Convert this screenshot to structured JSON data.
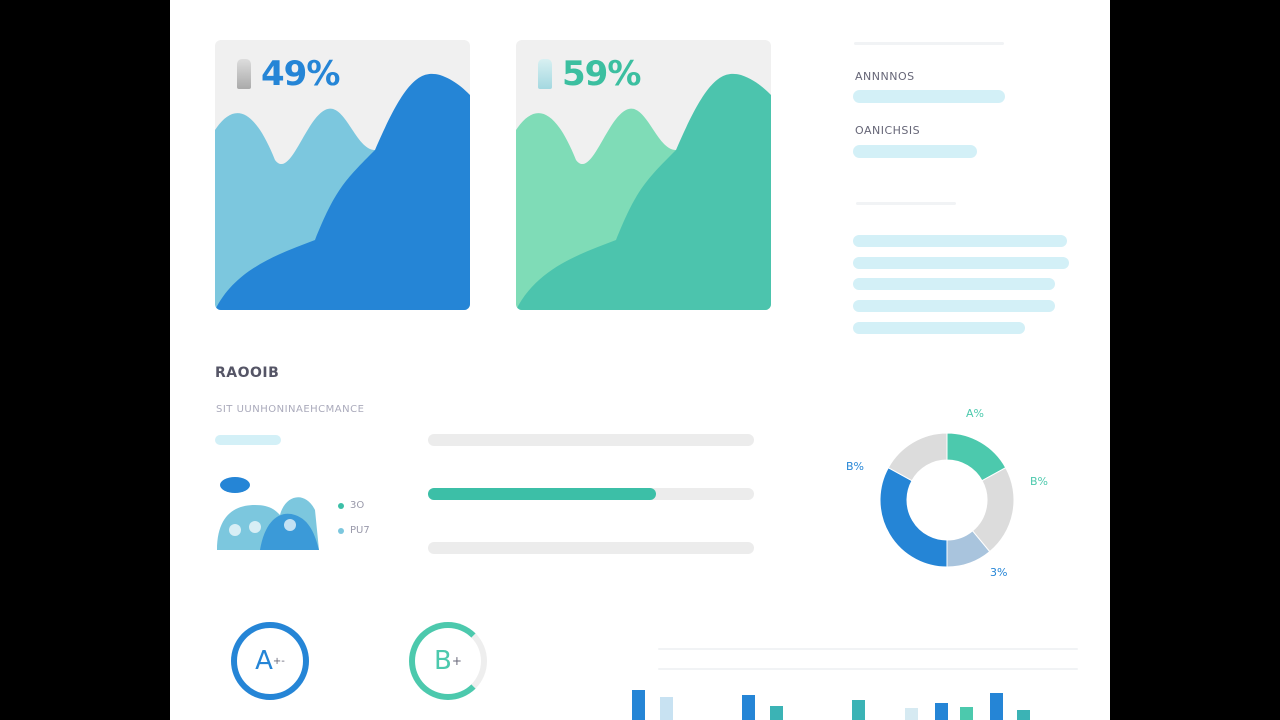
{
  "cards": [
    {
      "value": "49%",
      "icon": "battery-icon",
      "colors": {
        "back": "#7cc7de",
        "front": "#2585d6",
        "text": "#2585d6"
      }
    },
    {
      "value": "59%",
      "icon": "battery-icon",
      "colors": {
        "back": "#7fdcb7",
        "front": "#4cc4ad",
        "text": "#3cbfa0"
      }
    }
  ],
  "side": {
    "label1": "ANNNNOS",
    "label2": "OANICHSIS"
  },
  "section": {
    "title": "RAOOIB",
    "subtitle": "SIT UUNHONINAEHCMANCE",
    "legend": [
      {
        "label": "3O",
        "color": "#3cbfa7"
      },
      {
        "label": "PU7",
        "color": "#7cc7de"
      }
    ]
  },
  "progress": [
    {
      "value": 0
    },
    {
      "value": 70
    },
    {
      "value": 0
    }
  ],
  "chart_data": [
    {
      "type": "pie",
      "variant": "donut",
      "labels": [
        "A%",
        "B%",
        "3%",
        "B%"
      ],
      "segments": [
        {
          "value": 17,
          "color": "#4cc9ad"
        },
        {
          "value": 22,
          "color": "#dcdcdc"
        },
        {
          "value": 11,
          "color": "#a9c4dd"
        },
        {
          "value": 33,
          "color": "#2585d6"
        },
        {
          "value": 17,
          "color": "#dcdcdc"
        }
      ]
    },
    {
      "type": "bar",
      "values": [
        30,
        23,
        25,
        14,
        20,
        12,
        17,
        13,
        27,
        10
      ],
      "colors": [
        "#2585d6",
        "#c8e2f2",
        "#2585d6",
        "#3bb3b5",
        "#3bb3b5",
        "#d6eaf2",
        "#2585d6",
        "#4cc9ad",
        "#2585d6",
        "#3bb3b5"
      ]
    }
  ],
  "grades": [
    {
      "label": "A",
      "suffix": "+-",
      "color": "#2585d6"
    },
    {
      "label": "B",
      "suffix": "+",
      "color": "#4cc9ad"
    }
  ]
}
